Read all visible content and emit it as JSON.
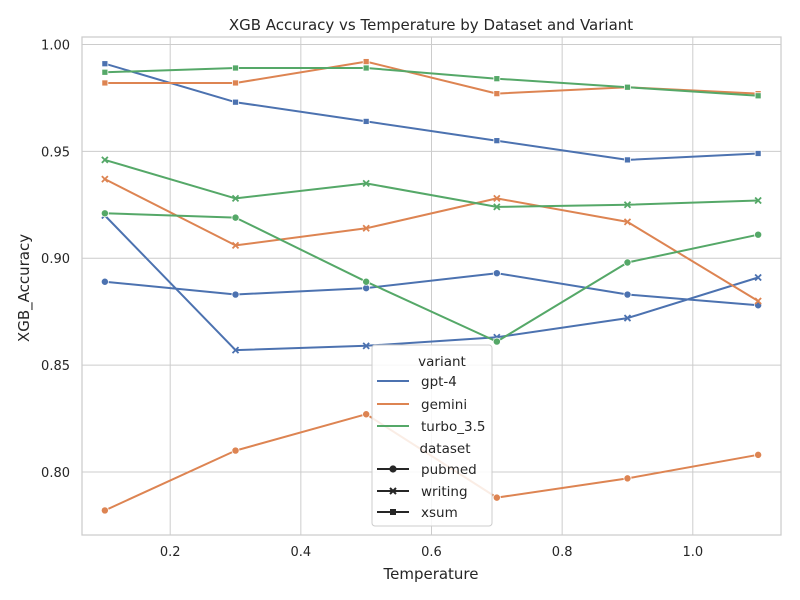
{
  "chart_data": {
    "type": "line",
    "title": "XGB Accuracy vs Temperature by Dataset and Variant",
    "xlabel": "Temperature",
    "ylabel": "XGB_Accuracy",
    "xlim": [
      0.065,
      1.135
    ],
    "ylim": [
      0.7705,
      1.0035
    ],
    "xticks": [
      0.2,
      0.4,
      0.6,
      0.8,
      1.0
    ],
    "xtick_labels": [
      "0.2",
      "0.4",
      "0.6",
      "0.8",
      "1.0"
    ],
    "yticks": [
      0.8,
      0.85,
      0.9,
      0.95,
      1.0
    ],
    "ytick_labels": [
      "0.80",
      "0.85",
      "0.90",
      "0.95",
      "1.00"
    ],
    "grid": true,
    "x": [
      0.1,
      0.3,
      0.5,
      0.7,
      0.9,
      1.1
    ],
    "legend": {
      "placement": "lower center",
      "variant_title": "variant",
      "dataset_title": "dataset",
      "variants": [
        {
          "name": "gpt-4",
          "color": "#4c72b0"
        },
        {
          "name": "gemini",
          "color": "#dd8452"
        },
        {
          "name": "turbo_3.5",
          "color": "#55a868"
        }
      ],
      "datasets": [
        {
          "name": "pubmed",
          "marker": "circle"
        },
        {
          "name": "writing",
          "marker": "x"
        },
        {
          "name": "xsum",
          "marker": "square"
        }
      ]
    },
    "series": [
      {
        "variant": "gpt-4",
        "dataset": "pubmed",
        "values": [
          0.889,
          0.883,
          0.886,
          0.893,
          0.883,
          0.878
        ]
      },
      {
        "variant": "gpt-4",
        "dataset": "writing",
        "values": [
          0.92,
          0.857,
          0.859,
          0.863,
          0.872,
          0.891
        ]
      },
      {
        "variant": "gpt-4",
        "dataset": "xsum",
        "values": [
          0.991,
          0.973,
          0.964,
          0.955,
          0.946,
          0.949
        ]
      },
      {
        "variant": "gemini",
        "dataset": "pubmed",
        "values": [
          0.782,
          0.81,
          0.827,
          0.788,
          0.797,
          0.808
        ]
      },
      {
        "variant": "gemini",
        "dataset": "writing",
        "values": [
          0.937,
          0.906,
          0.914,
          0.928,
          0.917,
          0.88
        ]
      },
      {
        "variant": "gemini",
        "dataset": "xsum",
        "values": [
          0.982,
          0.982,
          0.992,
          0.977,
          0.98,
          0.977
        ]
      },
      {
        "variant": "turbo_3.5",
        "dataset": "pubmed",
        "values": [
          0.921,
          0.919,
          0.889,
          0.861,
          0.898,
          0.911
        ]
      },
      {
        "variant": "turbo_3.5",
        "dataset": "writing",
        "values": [
          0.946,
          0.928,
          0.935,
          0.924,
          0.925,
          0.927
        ]
      },
      {
        "variant": "turbo_3.5",
        "dataset": "xsum",
        "values": [
          0.987,
          0.989,
          0.989,
          0.984,
          0.98,
          0.976
        ]
      }
    ]
  }
}
